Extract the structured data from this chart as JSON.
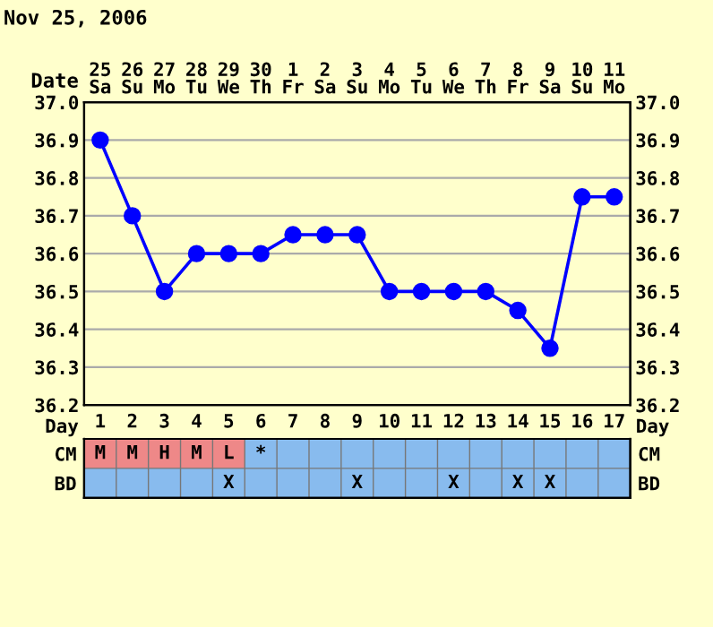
{
  "chart_data": [
    {
      "type": "line",
      "title": "Nov 25, 2006",
      "xlabel": "Date",
      "categories": [
        "25\nSa",
        "26\nSu",
        "27\nMo",
        "28\nTu",
        "29\nWe",
        "30\nTh",
        "1\nFr",
        "2\nSa",
        "3\nSu",
        "4\nMo",
        "5\nTu",
        "6\nWe",
        "7\nTh",
        "8\nFr",
        "9\nSa",
        "10\nSu",
        "11\nMo"
      ],
      "series": [
        {
          "color": "#0000ff",
          "values": [
            36.9,
            36.7,
            36.5,
            36.6,
            36.6,
            36.6,
            36.65,
            36.65,
            36.65,
            36.5,
            36.5,
            36.5,
            36.5,
            36.45,
            36.35,
            36.75,
            36.75
          ]
        }
      ],
      "ylim": [
        36.2,
        37.0
      ],
      "yticks": [
        {
          "value": 36.2,
          "label": "36.2"
        },
        {
          "value": 36.3,
          "label": "36.3"
        },
        {
          "value": 36.4,
          "label": "36.4"
        },
        {
          "value": 36.5,
          "label": "36.5"
        },
        {
          "value": 36.6,
          "label": "36.6"
        },
        {
          "value": 36.7,
          "label": "36.7"
        },
        {
          "value": 36.8,
          "label": "36.8"
        },
        {
          "value": 36.9,
          "label": "36.9"
        },
        {
          "value": 37.0,
          "label": "37.0"
        }
      ],
      "y2lim": [
        36.2,
        37.0
      ],
      "y2ticks": [
        {
          "value": 36.2,
          "label": "36.2"
        },
        {
          "value": 36.3,
          "label": "36.3"
        },
        {
          "value": 36.4,
          "label": "36.4"
        },
        {
          "value": 36.5,
          "label": "36.5"
        },
        {
          "value": 36.6,
          "label": "36.6"
        },
        {
          "value": 36.7,
          "label": "36.7"
        },
        {
          "value": 36.8,
          "label": "36.8"
        },
        {
          "value": 36.9,
          "label": "36.9"
        },
        {
          "value": 37.0,
          "label": "37.0"
        }
      ],
      "grid": true,
      "marker": "circle",
      "line_style": "solid"
    },
    {
      "type": "heatmap",
      "xlabel": "Day",
      "categories": [
        "1",
        "2",
        "3",
        "4",
        "5",
        "6",
        "7",
        "8",
        "9",
        "10",
        "11",
        "12",
        "13",
        "14",
        "15",
        "16",
        "17"
      ],
      "y_categories": [
        "CM",
        "BD"
      ],
      "y2_categories": [
        "CM",
        "BD"
      ],
      "cells": [
        [
          null,
          null,
          null,
          null,
          null,
          null,
          null,
          null,
          null,
          null,
          null,
          null,
          null,
          null,
          null,
          null,
          null
        ],
        [
          null,
          null,
          null,
          null,
          null,
          null,
          null,
          null,
          null,
          null,
          null,
          null,
          null,
          null,
          null,
          null,
          null
        ]
      ],
      "cell_labels": [
        [
          "M",
          "M",
          "H",
          "M",
          "L",
          "*",
          null,
          null,
          null,
          null,
          null,
          null,
          null,
          null,
          null,
          null,
          null
        ],
        [
          null,
          null,
          null,
          null,
          "X",
          null,
          null,
          null,
          "X",
          null,
          null,
          "X",
          null,
          "X",
          "X",
          null,
          null
        ]
      ]
    }
  ]
}
